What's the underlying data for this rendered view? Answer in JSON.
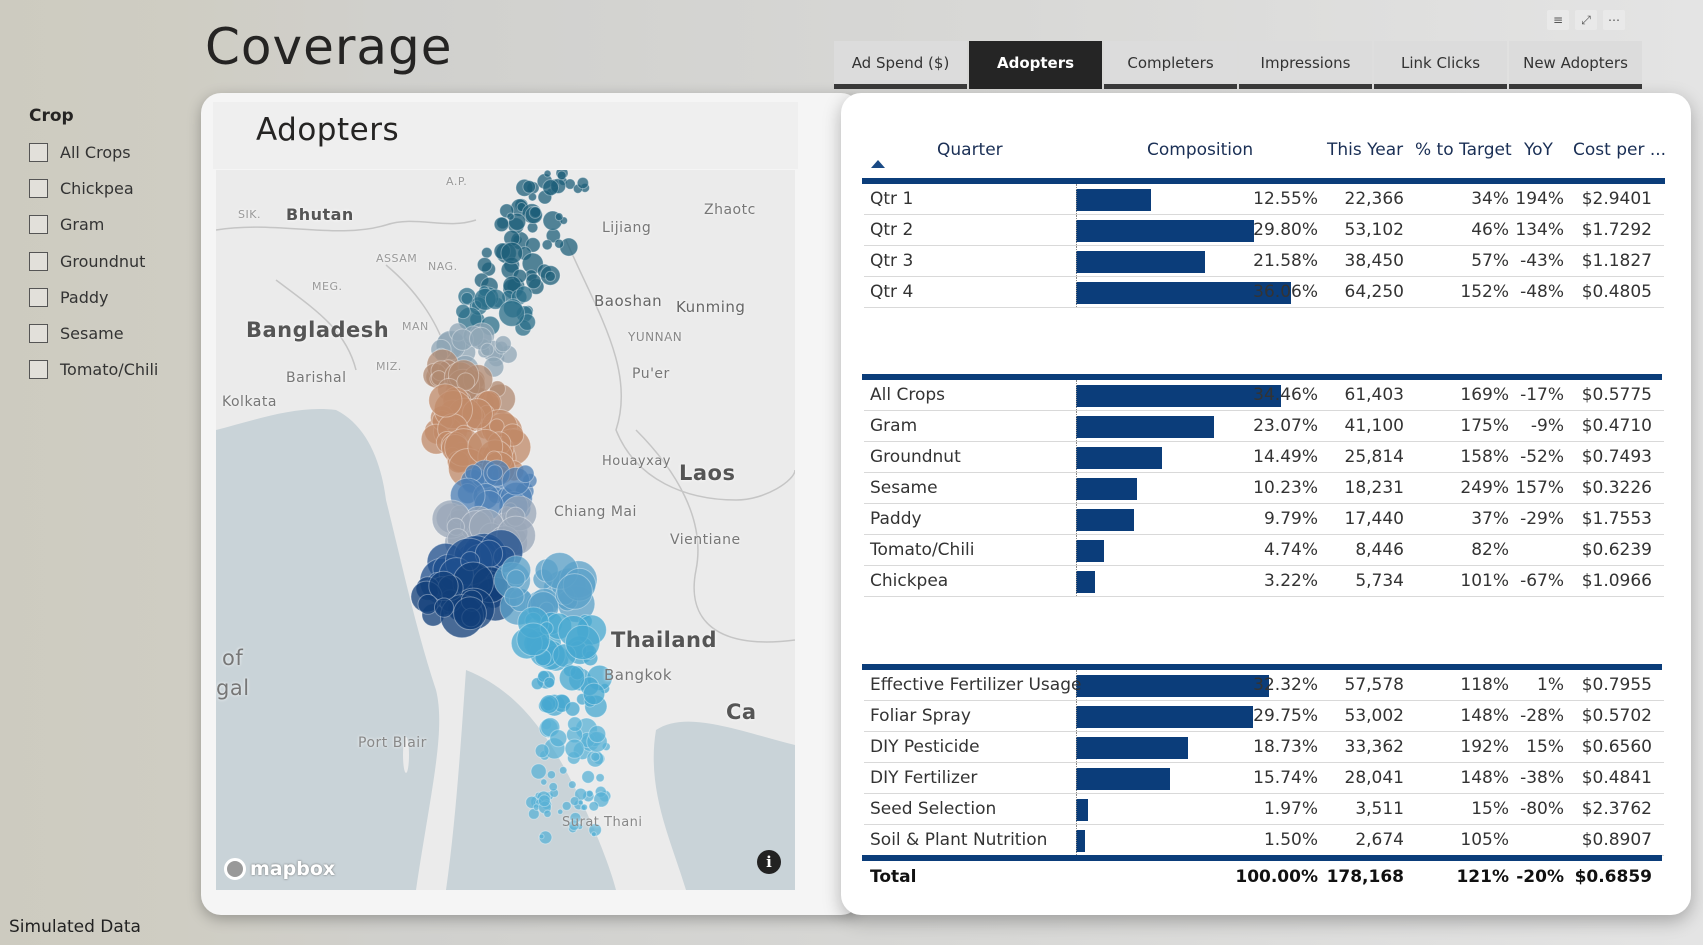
{
  "page_title": "Coverage",
  "footer": "Simulated Data",
  "top_icons": [
    "filter-icon",
    "focus-mode-icon",
    "more-options-icon"
  ],
  "slicer": {
    "title": "Crop",
    "items": [
      "All Crops",
      "Chickpea",
      "Gram",
      "Groundnut",
      "Paddy",
      "Sesame",
      "Tomato/Chili"
    ]
  },
  "tabs": [
    "Ad Spend ($)",
    "Adopters",
    "Completers",
    "Impressions",
    "Link Clicks",
    "New Adopters"
  ],
  "active_tab": "Adopters",
  "map": {
    "title": "Adopters",
    "labels": [
      "A.P.",
      "SIK.",
      "Bhutan",
      "Zhaotc",
      "Lijiang",
      "ASSAM",
      "NAG.",
      "MEG.",
      "Baoshan",
      "Kunming",
      "Bangladesh",
      "MAN",
      "YUNNAN",
      "Barishal",
      "MIZ.",
      "Pu'er",
      "Kolkata",
      "Houayxay",
      "Laos",
      "Chiang Mai",
      "Vientiane",
      "of",
      "gal",
      "Thailand",
      "Bangkok",
      "Port Blair",
      "Ca",
      "Surat Thani"
    ],
    "attribution": "mapbox",
    "info_icon": "info-icon"
  },
  "table": {
    "headers": {
      "dim": "Quarter",
      "composition": "Composition",
      "this_year": "This Year",
      "pct_target": "% to Target",
      "yoy": "YoY",
      "cost": "Cost per ..."
    },
    "quarters": [
      {
        "name": "Qtr 1",
        "pct": "12.55%",
        "value": 12.55,
        "ty": "22,366",
        "tgt": "34%",
        "yoy": "194%",
        "cost": "$2.9401"
      },
      {
        "name": "Qtr 2",
        "pct": "29.80%",
        "value": 29.8,
        "ty": "53,102",
        "tgt": "46%",
        "yoy": "134%",
        "cost": "$1.7292"
      },
      {
        "name": "Qtr 3",
        "pct": "21.58%",
        "value": 21.58,
        "ty": "38,450",
        "tgt": "57%",
        "yoy": "-43%",
        "cost": "$1.1827"
      },
      {
        "name": "Qtr 4",
        "pct": "36.06%",
        "value": 36.06,
        "ty": "64,250",
        "tgt": "152%",
        "yoy": "-48%",
        "cost": "$0.4805"
      }
    ],
    "crops": [
      {
        "name": "All Crops",
        "pct": "34.46%",
        "value": 34.46,
        "ty": "61,403",
        "tgt": "169%",
        "yoy": "-17%",
        "cost": "$0.5775"
      },
      {
        "name": "Gram",
        "pct": "23.07%",
        "value": 23.07,
        "ty": "41,100",
        "tgt": "175%",
        "yoy": "-9%",
        "cost": "$0.4710"
      },
      {
        "name": "Groundnut",
        "pct": "14.49%",
        "value": 14.49,
        "ty": "25,814",
        "tgt": "158%",
        "yoy": "-52%",
        "cost": "$0.7493"
      },
      {
        "name": "Sesame",
        "pct": "10.23%",
        "value": 10.23,
        "ty": "18,231",
        "tgt": "249%",
        "yoy": "157%",
        "cost": "$0.3226"
      },
      {
        "name": "Paddy",
        "pct": "9.79%",
        "value": 9.79,
        "ty": "17,440",
        "tgt": "37%",
        "yoy": "-29%",
        "cost": "$1.7553"
      },
      {
        "name": "Tomato/Chili",
        "pct": "4.74%",
        "value": 4.74,
        "ty": "8,446",
        "tgt": "82%",
        "yoy": "",
        "cost": "$0.6239"
      },
      {
        "name": "Chickpea",
        "pct": "3.22%",
        "value": 3.22,
        "ty": "5,734",
        "tgt": "101%",
        "yoy": "-67%",
        "cost": "$1.0966"
      }
    ],
    "practices": [
      {
        "name": "Effective Fertilizer Usage",
        "pct": "32.32%",
        "value": 32.32,
        "ty": "57,578",
        "tgt": "118%",
        "yoy": "1%",
        "cost": "$0.7955"
      },
      {
        "name": "Foliar Spray",
        "pct": "29.75%",
        "value": 29.75,
        "ty": "53,002",
        "tgt": "148%",
        "yoy": "-28%",
        "cost": "$0.5702"
      },
      {
        "name": "DIY Pesticide",
        "pct": "18.73%",
        "value": 18.73,
        "ty": "33,362",
        "tgt": "192%",
        "yoy": "15%",
        "cost": "$0.6560"
      },
      {
        "name": "DIY Fertilizer",
        "pct": "15.74%",
        "value": 15.74,
        "ty": "28,041",
        "tgt": "148%",
        "yoy": "-38%",
        "cost": "$0.4841"
      },
      {
        "name": "Seed Selection",
        "pct": "1.97%",
        "value": 1.97,
        "ty": "3,511",
        "tgt": "15%",
        "yoy": "-80%",
        "cost": "$2.3762"
      },
      {
        "name": "Soil & Plant Nutrition",
        "pct": "1.50%",
        "value": 1.5,
        "ty": "2,674",
        "tgt": "105%",
        "yoy": "",
        "cost": "$0.8907"
      }
    ],
    "total": {
      "name": "Total",
      "pct": "100.00%",
      "ty": "178,168",
      "tgt": "121%",
      "yoy": "-20%",
      "cost": "$0.6859"
    },
    "bar_max": 36.06,
    "bar_color": "#0b3d7a"
  }
}
